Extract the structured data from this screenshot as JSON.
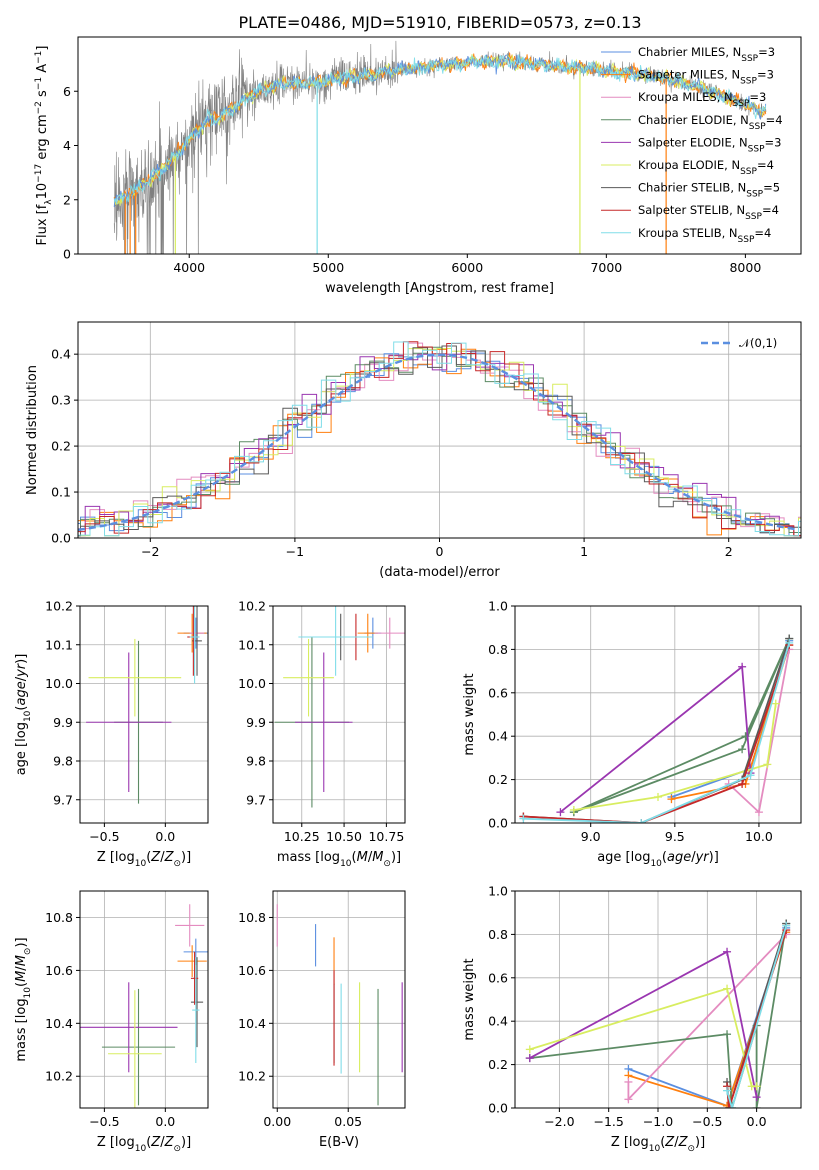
{
  "figure": {
    "title": "PLATE=0486, MJD=51910, FIBERID=0573, z=0.13"
  },
  "colors": {
    "c1": "#5b8fe0",
    "c2": "#ff7f0e",
    "c3": "#5c8b64",
    "c4": "#9a36b0",
    "c5": "#d8ed60",
    "c6": "#5a5a5a",
    "c7": "#c62828",
    "c8": "#80dde8",
    "c9": "#e48cc0",
    "data": "#808080"
  },
  "models": [
    {
      "label": "Chabrier MILES, N<sub>SSP</sub>=3",
      "text": "Chabrier MILES, NSSP=3",
      "color": "#5b8fe0"
    },
    {
      "label": "Salpeter MILES, N<sub>SSP</sub>=3",
      "text": "Salpeter MILES, NSSP=3",
      "color": "#ff7f0e"
    },
    {
      "label": "Kroupa MILES, N<sub>SSP</sub>=3",
      "text": "Kroupa MILES, NSSP=3",
      "color": "#e48cc0"
    },
    {
      "text": "Chabrier ELODIE, NSSP=4",
      "color": "#5c8b64"
    },
    {
      "text": "Salpeter ELODIE, NSSP=3",
      "color": "#9a36b0"
    },
    {
      "text": "Kroupa ELODIE, NSSP=4",
      "color": "#d8ed60"
    },
    {
      "text": "Chabrier STELIB, NSSP=5",
      "color": "#5a5a5a"
    },
    {
      "text": "Salpeter STELIB, NSSP=4",
      "color": "#c62828"
    },
    {
      "text": "Kroupa STELIB, NSSP=4",
      "color": "#80dde8"
    }
  ],
  "chart_data": [
    {
      "type": "line",
      "id": "spectrum",
      "xlabel": "wavelength [Angstrom, rest frame]",
      "ylabel": "Flux [f_λ 10^-17 erg cm^-2 s^-1 A^-1]",
      "xlim": [
        3200,
        8400
      ],
      "ylim": [
        0,
        8
      ],
      "xticks": [
        4000,
        5000,
        6000,
        7000,
        8000
      ],
      "yticks": [
        0,
        2,
        4,
        6
      ],
      "continuum": {
        "x": [
          3500,
          3600,
          3700,
          3800,
          3900,
          4000,
          4100,
          4200,
          4300,
          4400,
          4500,
          4700,
          4900,
          5100,
          5300,
          5500,
          5700,
          5900,
          6100,
          6300,
          6500,
          6700,
          6900,
          7100,
          7300,
          7500,
          7700,
          7900,
          8100
        ],
        "y": [
          2.0,
          2.3,
          2.7,
          3.1,
          3.6,
          4.2,
          4.8,
          5.0,
          5.3,
          5.7,
          6.0,
          6.3,
          6.3,
          6.5,
          6.6,
          6.8,
          6.9,
          7.0,
          7.1,
          7.1,
          7.0,
          6.9,
          6.8,
          6.7,
          6.6,
          6.4,
          6.1,
          5.7,
          5.3
        ]
      },
      "legend_position": "upper right"
    },
    {
      "type": "histogram",
      "id": "residuals",
      "xlabel": "(data-model)/error",
      "ylabel": "Normed distribution",
      "xlim": [
        -2.5,
        2.5
      ],
      "ylim": [
        0,
        0.47
      ],
      "xticks": [
        -2,
        -1,
        0,
        1,
        2
      ],
      "yticks": [
        0.0,
        0.1,
        0.2,
        0.3,
        0.4
      ],
      "reference": {
        "label": "𝒩(0,1)",
        "mu": 0,
        "sigma": 1
      },
      "bin_width": 0.1,
      "grid": true,
      "legend_position": "upper right"
    },
    {
      "type": "scatter",
      "id": "age_vs_Z",
      "xlabel": "Z [log10(Z/Z☉)]",
      "ylabel": "age [log10(age/yr)]",
      "xlim": [
        -0.7,
        0.35
      ],
      "ylim": [
        9.64,
        10.2
      ],
      "xticks": [
        -0.5,
        0.0
      ],
      "yticks": [
        9.7,
        9.8,
        9.9,
        10.0,
        10.1,
        10.2
      ],
      "points": [
        {
          "c": "c1",
          "x": 0.25,
          "y": 10.13,
          "ex": 0.1,
          "ey": 0.04
        },
        {
          "c": "c2",
          "x": 0.22,
          "y": 10.13,
          "ex": 0.12,
          "ey": 0.05
        },
        {
          "c": "c9",
          "x": 0.26,
          "y": 10.13,
          "ex": 0.06,
          "ey": 0.04
        },
        {
          "c": "c3",
          "x": -0.22,
          "y": 9.9,
          "ex": 0.2,
          "ey": 0.21
        },
        {
          "c": "c4",
          "x": -0.3,
          "y": 9.9,
          "ex": 0.35,
          "ey": 0.18
        },
        {
          "c": "c5",
          "x": -0.25,
          "y": 10.015,
          "ex": 0.38,
          "ey": 0.1
        },
        {
          "c": "c6",
          "x": 0.26,
          "y": 10.11,
          "ex": 0.04,
          "ey": 0.09
        },
        {
          "c": "c7",
          "x": 0.23,
          "y": 10.12,
          "ex": 0.05,
          "ey": 0.1
        },
        {
          "c": "c8",
          "x": 0.24,
          "y": 10.12,
          "ex": 0.04,
          "ey": 0.12
        }
      ]
    },
    {
      "type": "scatter",
      "id": "age_vs_mass",
      "xlabel": "mass [log10(M/M☉)]",
      "ylabel": "",
      "xlim": [
        10.08,
        10.86
      ],
      "ylim": [
        9.64,
        10.2
      ],
      "xticks": [
        10.25,
        10.5,
        10.75
      ],
      "yticks": [
        9.7,
        9.8,
        9.9,
        10.0,
        10.1,
        10.2
      ],
      "points": [
        {
          "c": "c1",
          "x": 10.67,
          "y": 10.13,
          "ex": 0.05,
          "ey": 0.04
        },
        {
          "c": "c2",
          "x": 10.64,
          "y": 10.13,
          "ex": 0.06,
          "ey": 0.05
        },
        {
          "c": "c9",
          "x": 10.77,
          "y": 10.13,
          "ex": 0.09,
          "ey": 0.04
        },
        {
          "c": "c3",
          "x": 10.31,
          "y": 9.9,
          "ex": 0.22,
          "ey": 0.22
        },
        {
          "c": "c4",
          "x": 10.38,
          "y": 9.9,
          "ex": 0.17,
          "ey": 0.18
        },
        {
          "c": "c5",
          "x": 10.29,
          "y": 10.015,
          "ex": 0.15,
          "ey": 0.1
        },
        {
          "c": "c6",
          "x": 10.48,
          "y": 10.12,
          "ex": 0.17,
          "ey": 0.06
        },
        {
          "c": "c7",
          "x": 10.57,
          "y": 10.12,
          "ex": 0.1,
          "ey": 0.06
        },
        {
          "c": "c8",
          "x": 10.45,
          "y": 10.12,
          "ex": 0.22,
          "ey": 0.1
        }
      ]
    },
    {
      "type": "line",
      "id": "mass_weight_vs_age",
      "xlabel": "age [log10(age/yr)]",
      "ylabel": "mass weight",
      "xlim": [
        8.55,
        10.25
      ],
      "ylim": [
        0,
        1.0
      ],
      "xticks": [
        9.0,
        9.5,
        10.0
      ],
      "yticks": [
        0.0,
        0.2,
        0.4,
        0.6,
        0.8,
        1.0
      ],
      "grid": true,
      "series": [
        {
          "c": "c1",
          "x": [
            9.48,
            9.95,
            10.18
          ],
          "y": [
            0.12,
            0.25,
            0.84
          ]
        },
        {
          "c": "c2",
          "x": [
            9.48,
            9.92,
            10.18
          ],
          "y": [
            0.11,
            0.18,
            0.82
          ]
        },
        {
          "c": "c9",
          "x": [
            9.82,
            10.0,
            10.18
          ],
          "y": [
            0.18,
            0.05,
            0.8
          ]
        },
        {
          "c": "c3",
          "x": [
            8.9,
            9.92,
            10.18,
            9.9,
            8.9
          ],
          "y": [
            0.05,
            0.4,
            0.85,
            0.34,
            0.05
          ]
        },
        {
          "c": "c4",
          "x": [
            8.82,
            9.9,
            9.95
          ],
          "y": [
            0.05,
            0.72,
            0.23
          ]
        },
        {
          "c": "c5",
          "x": [
            8.9,
            9.4,
            10.05,
            10.1
          ],
          "y": [
            0.06,
            0.12,
            0.27,
            0.55
          ]
        },
        {
          "c": "c6",
          "x": [
            8.6,
            9.3,
            9.9,
            10.18
          ],
          "y": [
            0.03,
            0.0,
            0.2,
            0.85
          ]
        },
        {
          "c": "c7",
          "x": [
            8.6,
            9.3,
            9.9,
            10.18
          ],
          "y": [
            0.03,
            0.0,
            0.18,
            0.82
          ]
        },
        {
          "c": "c8",
          "x": [
            8.6,
            9.3,
            9.95,
            10.18
          ],
          "y": [
            0.02,
            0.0,
            0.22,
            0.83
          ]
        }
      ]
    },
    {
      "type": "scatter",
      "id": "mass_vs_Z",
      "xlabel": "Z [log10(Z/Z☉)]",
      "ylabel": "mass [log10(M/M☉)]",
      "xlim": [
        -0.7,
        0.35
      ],
      "ylim": [
        10.08,
        10.9
      ],
      "xticks": [
        -0.5,
        0.0
      ],
      "yticks": [
        10.2,
        10.4,
        10.6,
        10.8
      ],
      "points": [
        {
          "c": "c1",
          "x": 0.25,
          "y": 10.67,
          "ex": 0.1,
          "ey": 0.05
        },
        {
          "c": "c2",
          "x": 0.22,
          "y": 10.635,
          "ex": 0.12,
          "ey": 0.06
        },
        {
          "c": "c9",
          "x": 0.2,
          "y": 10.77,
          "ex": 0.12,
          "ey": 0.08
        },
        {
          "c": "c3",
          "x": -0.22,
          "y": 10.31,
          "ex": 0.3,
          "ey": 0.22
        },
        {
          "c": "c4",
          "x": -0.3,
          "y": 10.385,
          "ex": 0.4,
          "ey": 0.17
        },
        {
          "c": "c5",
          "x": -0.25,
          "y": 10.285,
          "ex": 0.22,
          "ey": 0.24
        },
        {
          "c": "c6",
          "x": 0.26,
          "y": 10.48,
          "ex": 0.05,
          "ey": 0.17
        },
        {
          "c": "c7",
          "x": 0.24,
          "y": 10.57,
          "ex": 0.03,
          "ey": 0.1
        },
        {
          "c": "c8",
          "x": 0.25,
          "y": 10.45,
          "ex": 0.03,
          "ey": 0.2
        }
      ]
    },
    {
      "type": "scatter",
      "id": "mass_vs_ebv",
      "xlabel": "E(B-V)",
      "ylabel": "",
      "xlim": [
        -0.003,
        0.09
      ],
      "ylim": [
        10.08,
        10.9
      ],
      "xticks": [
        0.0,
        0.05
      ],
      "yticks": [
        10.2,
        10.4,
        10.6,
        10.8
      ],
      "points": [
        {
          "c": "c1",
          "x": 0.027,
          "y": 10.695,
          "ex": 0,
          "ey": 0.08
        },
        {
          "c": "c2",
          "x": 0.04,
          "y": 10.635,
          "ex": 0,
          "ey": 0.09
        },
        {
          "c": "c9",
          "x": 0.0,
          "y": 10.77,
          "ex": 0,
          "ey": 0.08
        },
        {
          "c": "c3",
          "x": 0.071,
          "y": 10.31,
          "ex": 0,
          "ey": 0.22
        },
        {
          "c": "c4",
          "x": 0.088,
          "y": 10.385,
          "ex": 0,
          "ey": 0.17
        },
        {
          "c": "c5",
          "x": 0.058,
          "y": 10.385,
          "ex": 0,
          "ey": 0.17
        },
        {
          "c": "c6",
          "x": 0.04,
          "y": 10.4,
          "ex": 0,
          "ey": 0.15
        },
        {
          "c": "c7",
          "x": 0.04,
          "y": 10.42,
          "ex": 0,
          "ey": 0.18
        },
        {
          "c": "c8",
          "x": 0.045,
          "y": 10.38,
          "ex": 0,
          "ey": 0.17
        }
      ]
    },
    {
      "type": "line",
      "id": "mass_weight_vs_Z",
      "xlabel": "Z [log10(Z/Z☉)]",
      "ylabel": "mass weight",
      "xlim": [
        -2.45,
        0.45
      ],
      "ylim": [
        0,
        1.0
      ],
      "xticks": [
        -2.0,
        -1.5,
        -1.0,
        -0.5,
        0.0
      ],
      "yticks": [
        0.0,
        0.2,
        0.4,
        0.6,
        0.8,
        1.0
      ],
      "grid": true,
      "series": [
        {
          "c": "c1",
          "x": [
            -1.3,
            -0.3,
            0.3
          ],
          "y": [
            0.18,
            0.01,
            0.83
          ]
        },
        {
          "c": "c2",
          "x": [
            -1.3,
            -0.3,
            0.3
          ],
          "y": [
            0.15,
            0.01,
            0.81
          ]
        },
        {
          "c": "c9",
          "x": [
            -1.3,
            -1.3,
            0.3
          ],
          "y": [
            0.12,
            0.04,
            0.8
          ]
        },
        {
          "c": "c3",
          "x": [
            -2.3,
            -0.3,
            -0.25,
            0.0,
            0.0,
            0.3
          ],
          "y": [
            0.23,
            0.34,
            0.0,
            0.38,
            0.0,
            0.85
          ]
        },
        {
          "c": "c4",
          "x": [
            -2.3,
            -0.3,
            0.0
          ],
          "y": [
            0.23,
            0.72,
            0.05
          ]
        },
        {
          "c": "c5",
          "x": [
            -2.3,
            -0.3,
            -0.05,
            0.0
          ],
          "y": [
            0.27,
            0.55,
            0.1,
            0.1
          ]
        },
        {
          "c": "c6",
          "x": [
            -0.3,
            -0.28,
            0.3
          ],
          "y": [
            0.12,
            0.0,
            0.85
          ]
        },
        {
          "c": "c7",
          "x": [
            -0.3,
            -0.28,
            0.3
          ],
          "y": [
            0.1,
            0.0,
            0.82
          ]
        },
        {
          "c": "c8",
          "x": [
            -0.3,
            -0.25,
            0.3
          ],
          "y": [
            0.08,
            0.0,
            0.84
          ]
        }
      ]
    }
  ]
}
